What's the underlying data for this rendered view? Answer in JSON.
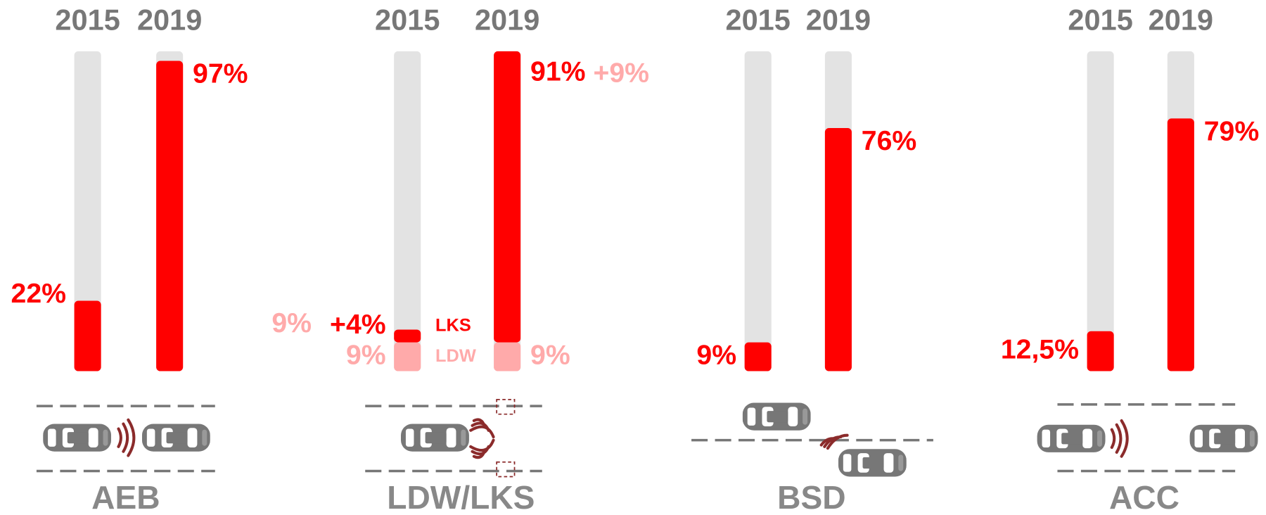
{
  "chart_data": [
    {
      "type": "bar",
      "title": "AEB",
      "categories": [
        "2015",
        "2019"
      ],
      "values": [
        22,
        97
      ],
      "value_labels": [
        "22%",
        "97%"
      ],
      "color": "#ff0000",
      "track_color": "#e3e3e3",
      "ylim": [
        0,
        100
      ]
    },
    {
      "type": "stacked_bar",
      "title": "LDW/LKS",
      "categories": [
        "2015",
        "2019"
      ],
      "ylim": [
        0,
        100
      ],
      "track_color": "#e3e3e3",
      "series": [
        {
          "name": "LDW",
          "color": "#ffaaaa",
          "values": [
            9,
            9
          ],
          "value_labels": [
            "9%",
            "9%"
          ]
        },
        {
          "name": "LKS",
          "color": "#ff0000",
          "values": [
            4,
            91
          ],
          "value_labels": [
            "+4%",
            "91%"
          ]
        }
      ],
      "annotations": [
        {
          "text": "9%",
          "color": "#ffaaaa"
        },
        {
          "text": "+9%",
          "color": "#ffaaaa"
        }
      ]
    },
    {
      "type": "bar",
      "title": "BSD",
      "categories": [
        "2015",
        "2019"
      ],
      "values": [
        9,
        76
      ],
      "value_labels": [
        "9%",
        "76%"
      ],
      "color": "#ff0000",
      "track_color": "#e3e3e3",
      "ylim": [
        0,
        100
      ]
    },
    {
      "type": "bar",
      "title": "ACC",
      "categories": [
        "2015",
        "2019"
      ],
      "values": [
        12.5,
        79
      ],
      "value_labels": [
        "12,5%",
        "79%"
      ],
      "color": "#ff0000",
      "track_color": "#e3e3e3",
      "ylim": [
        0,
        100
      ]
    }
  ]
}
